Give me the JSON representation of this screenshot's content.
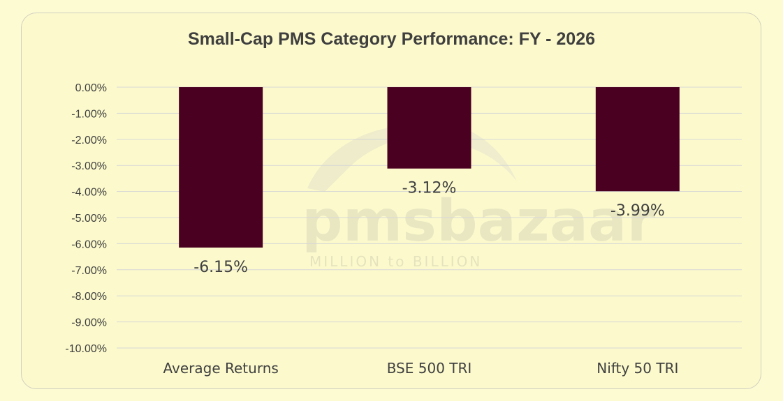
{
  "chart_data": {
    "type": "bar",
    "title": "Small-Cap PMS Category Performance: FY - 2026",
    "categories": [
      "Average Returns",
      "BSE 500 TRI",
      "Nifty 50 TRI"
    ],
    "values": [
      -6.15,
      -3.12,
      -3.99
    ],
    "data_labels": [
      "-6.15%",
      "-3.12%",
      "-3.99%"
    ],
    "ylim": [
      -10,
      0
    ],
    "y_ticks": [
      0,
      -1,
      -2,
      -3,
      -4,
      -5,
      -6,
      -7,
      -8,
      -9,
      -10
    ],
    "y_tick_labels": [
      "0.00%",
      "-1.00%",
      "-2.00%",
      "-3.00%",
      "-4.00%",
      "-5.00%",
      "-6.00%",
      "-7.00%",
      "-8.00%",
      "-9.00%",
      "-10.00%"
    ],
    "grid": true,
    "bar_color": "#4a0020",
    "xlabel": "",
    "ylabel": ""
  },
  "watermark": {
    "brand": "pmsbazaar",
    "tagline": "MILLION to BILLION"
  }
}
